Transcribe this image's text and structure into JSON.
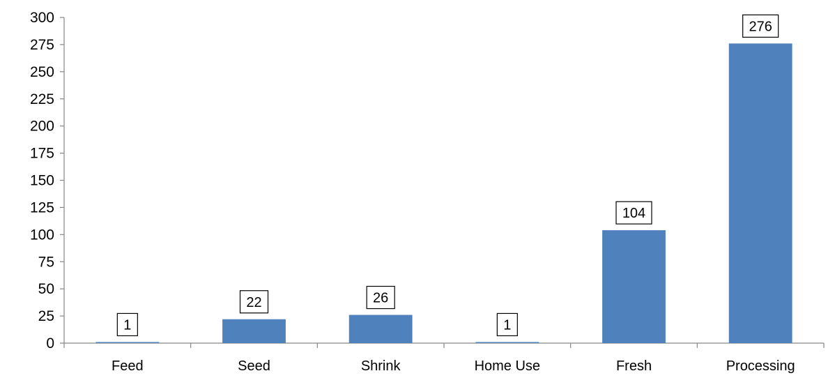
{
  "chart_data": {
    "type": "bar",
    "title": "",
    "xlabel": "",
    "ylabel": "",
    "categories": [
      "Feed",
      "Seed",
      "Shrink",
      "Home Use",
      "Fresh",
      "Processing"
    ],
    "values": [
      1,
      22,
      26,
      1,
      104,
      276
    ],
    "data_labels": [
      "1",
      "22",
      "26",
      "1",
      "104",
      "276"
    ],
    "ylim": [
      0,
      300
    ],
    "yticks": [
      0,
      25,
      50,
      75,
      100,
      125,
      150,
      175,
      200,
      225,
      250,
      275,
      300
    ],
    "ytick_labels": [
      "0",
      "25",
      "50",
      "75",
      "100",
      "125",
      "150",
      "175",
      "200",
      "225",
      "250",
      "275",
      "300"
    ],
    "grid": false,
    "legend": "none",
    "colors": {
      "bar": "#4f81bd",
      "axis": "#868686",
      "text": "#000000",
      "label_box": "#000000"
    }
  }
}
